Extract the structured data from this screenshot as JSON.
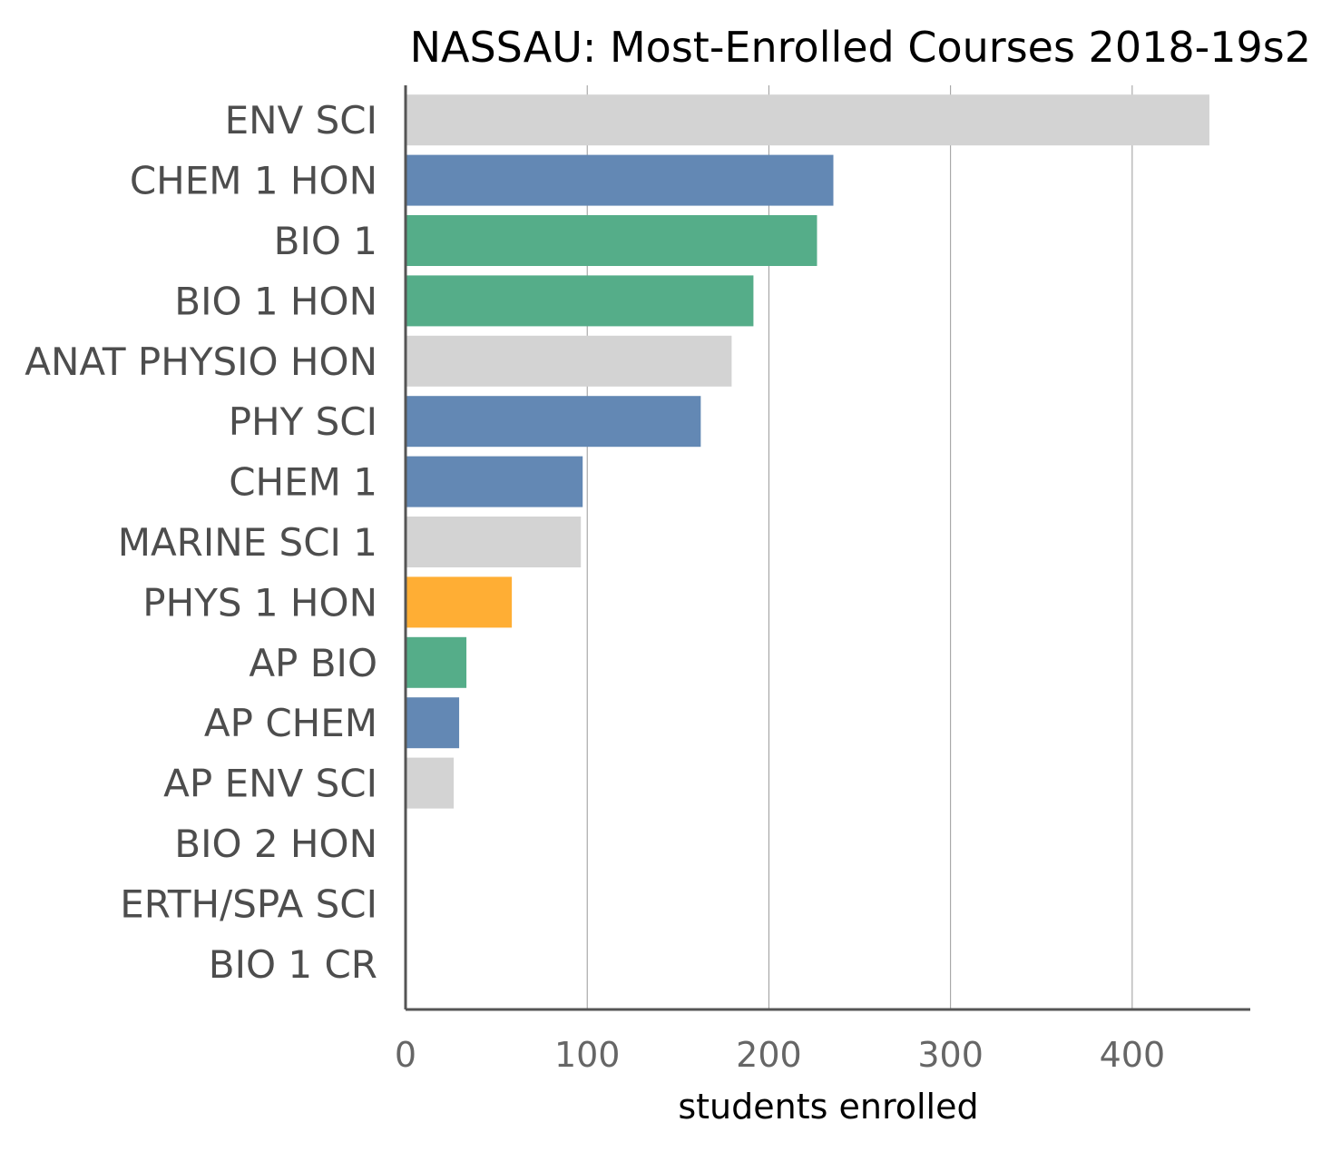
{
  "chart_data": {
    "type": "bar",
    "orientation": "horizontal",
    "title": "NASSAU: Most-Enrolled Courses 2018-19s2",
    "xlabel": "students enrolled",
    "ylabel": "",
    "xlim": [
      0,
      465
    ],
    "xticks": [
      0,
      100,
      200,
      300,
      400
    ],
    "grid": true,
    "categories": [
      "ENV SCI",
      "CHEM 1 HON",
      "BIO 1",
      "BIO 1 HON",
      "ANAT PHYSIO HON",
      "PHY SCI",
      "CHEM 1",
      "MARINE SCI 1",
      "PHYS 1 HON",
      "AP BIO",
      "AP CHEM",
      "AP ENV SCI",
      "BIO 2 HON",
      "ERTH/SPA SCI",
      "BIO 1 CR"
    ],
    "values": [
      442,
      235,
      226,
      191,
      179,
      162,
      97,
      96,
      58,
      33,
      29,
      26,
      0,
      0,
      0
    ],
    "bar_colors": [
      "#d3d3d3",
      "#6388b4",
      "#55ad89",
      "#55ad89",
      "#d3d3d3",
      "#6388b4",
      "#6388b4",
      "#d3d3d3",
      "#ffae34",
      "#55ad89",
      "#6388b4",
      "#d3d3d3",
      "#55ad89",
      "#d3d3d3",
      "#55ad89"
    ],
    "colors": {
      "gray": "#d3d3d3",
      "blue": "#6388b4",
      "green": "#55ad89",
      "orange": "#ffae34",
      "axis": "#555555",
      "grid": "#9a9a9a"
    }
  }
}
